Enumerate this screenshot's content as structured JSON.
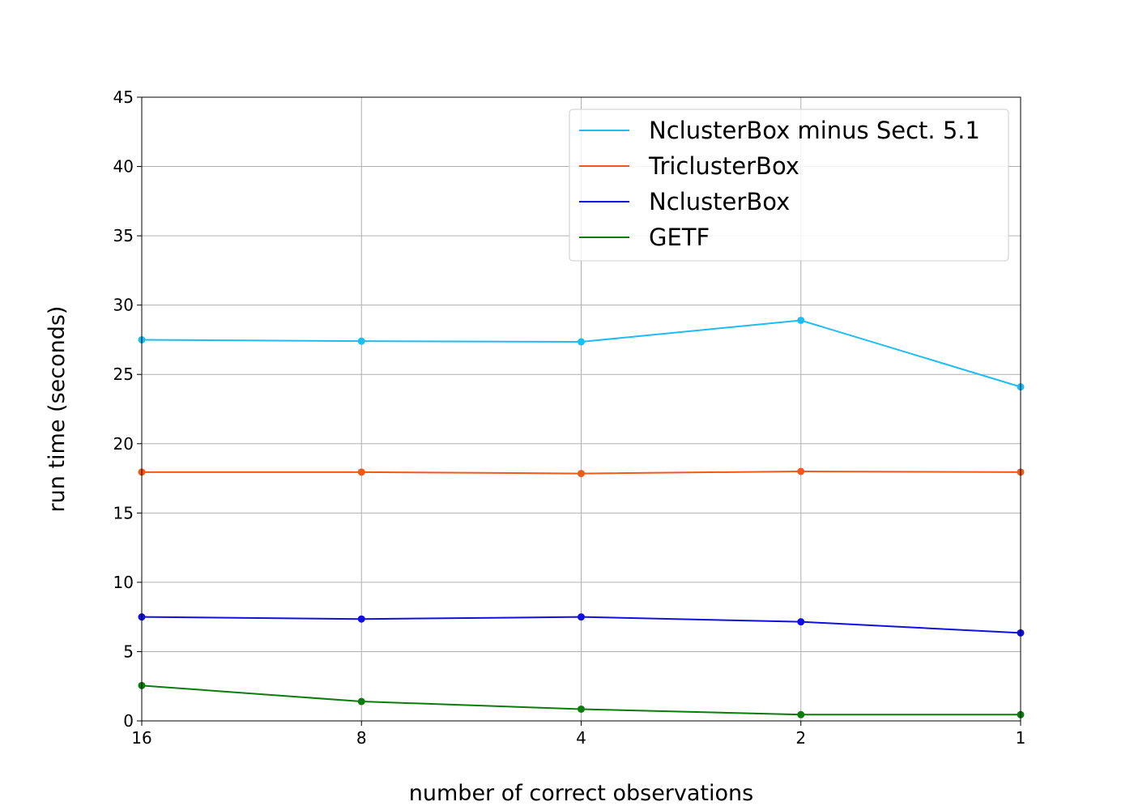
{
  "chart_data": {
    "type": "line",
    "x": [
      "16",
      "8",
      "4",
      "2",
      "1"
    ],
    "xlabel": "number of correct observations",
    "ylabel": "run time (seconds)",
    "ylim": [
      0,
      45
    ],
    "yticks": [
      "0",
      "5",
      "10",
      "15",
      "20",
      "25",
      "30",
      "35",
      "40",
      "45"
    ],
    "grid": true,
    "legend_position": "top-right",
    "series": [
      {
        "name": "NclusterBox minus Sect. 5.1",
        "color": "#1cbdf2",
        "values": [
          27.5,
          27.4,
          27.35,
          28.9,
          24.1
        ]
      },
      {
        "name": "TriclusterBox",
        "color": "#f2581c",
        "values": [
          17.95,
          17.95,
          17.85,
          18.0,
          17.95
        ]
      },
      {
        "name": "NclusterBox",
        "color": "#1010e0",
        "values": [
          7.5,
          7.35,
          7.5,
          7.15,
          6.35
        ]
      },
      {
        "name": "GETF",
        "color": "#0a7d0a",
        "values": [
          2.55,
          1.4,
          0.85,
          0.45,
          0.45
        ]
      }
    ]
  }
}
